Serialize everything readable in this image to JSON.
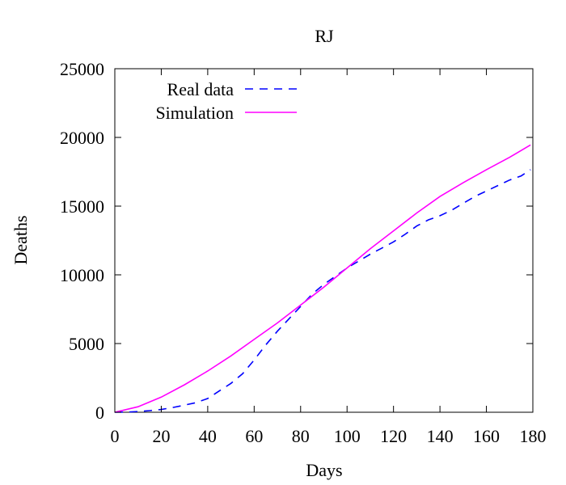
{
  "chart_data": {
    "type": "line",
    "title": "RJ",
    "xlabel": "Days",
    "ylabel": "Deaths",
    "xlim": [
      0,
      180
    ],
    "ylim": [
      0,
      25000
    ],
    "xticks": [
      0,
      20,
      40,
      60,
      80,
      100,
      120,
      140,
      160,
      180
    ],
    "yticks": [
      0,
      5000,
      10000,
      15000,
      20000,
      25000
    ],
    "grid": false,
    "legend_position": "top-left",
    "series": [
      {
        "name": "Real data",
        "style": "dashed",
        "color": "#0000ff",
        "x": [
          0,
          5,
          10,
          15,
          20,
          25,
          30,
          35,
          40,
          45,
          50,
          55,
          60,
          65,
          70,
          75,
          80,
          85,
          90,
          95,
          100,
          105,
          110,
          115,
          120,
          125,
          130,
          135,
          140,
          145,
          150,
          155,
          160,
          165,
          170,
          175,
          179
        ],
        "y": [
          0,
          10,
          50,
          120,
          200,
          350,
          520,
          700,
          1000,
          1550,
          2100,
          2800,
          3800,
          4900,
          5900,
          6800,
          7700,
          8600,
          9300,
          9900,
          10500,
          11000,
          11500,
          11950,
          12400,
          12950,
          13550,
          14000,
          14300,
          14700,
          15200,
          15700,
          16100,
          16500,
          16900,
          17200,
          17650
        ]
      },
      {
        "name": "Simulation",
        "style": "solid",
        "color": "#ff00ff",
        "x": [
          0,
          10,
          20,
          30,
          40,
          50,
          60,
          70,
          80,
          90,
          100,
          110,
          120,
          130,
          140,
          150,
          160,
          170,
          179
        ],
        "y": [
          0,
          400,
          1100,
          2000,
          3000,
          4100,
          5300,
          6500,
          7800,
          9100,
          10500,
          11900,
          13200,
          14500,
          15700,
          16700,
          17650,
          18550,
          19450
        ]
      }
    ]
  }
}
